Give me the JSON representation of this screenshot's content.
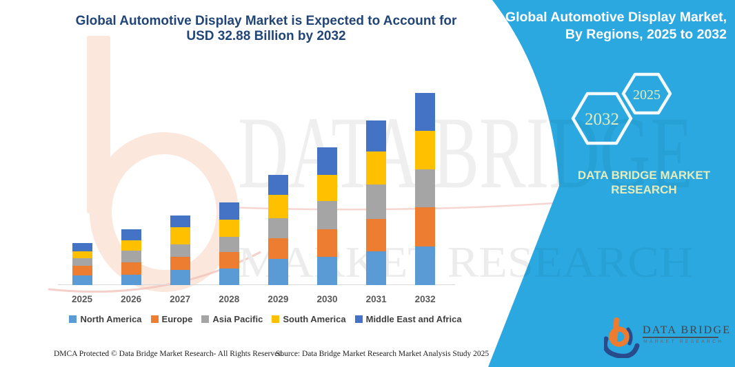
{
  "title": {
    "line1": "Global Automotive Display Market is Expected to Account for",
    "line2": "USD 32.88 Billion by 2032"
  },
  "banner": {
    "title_line1": "Global Automotive Display Market,",
    "title_line2": "By Regions, 2025 to 2032",
    "brand_name": "DATA BRIDGE MARKET RESEARCH",
    "hexagons": {
      "back": "2032",
      "front": "2025"
    }
  },
  "logo": {
    "wordmark": "DATA BRIDGE",
    "subtext": "MARKET RESEARCH"
  },
  "watermark": {
    "line1": "DATA BRIDGE",
    "line2": "MARKET RESEARCH"
  },
  "footer": {
    "dmca": "DMCA Protected © Data Bridge Market Research- All Rights Reserved.",
    "source": "Source: Data Bridge Market Research Market Analysis Study 2025"
  },
  "colors": {
    "teal": "#2AA8DF",
    "title_navy": "#214577",
    "pale_yellow": "#E5ECBD",
    "axis_label": "#595959",
    "legend_text": "#3F3F3F"
  },
  "chart_data": {
    "type": "bar",
    "stacked": true,
    "title": "Global Automotive Display Market is Expected to Account for USD 32.88 Billion by 2032",
    "unit": "USD Billion",
    "categories": [
      "2025",
      "2026",
      "2027",
      "2028",
      "2029",
      "2030",
      "2031",
      "2032"
    ],
    "series": [
      {
        "name": "North America",
        "color": "#5B9BD5",
        "values": [
          1.6,
          1.8,
          2.6,
          2.8,
          4.5,
          4.8,
          5.8,
          6.6
        ]
      },
      {
        "name": "Europe",
        "color": "#ED7D31",
        "values": [
          1.7,
          2.1,
          2.2,
          2.8,
          3.5,
          4.8,
          5.5,
          6.7
        ]
      },
      {
        "name": "Asia Pacific",
        "color": "#A5A5A5",
        "values": [
          1.3,
          2.0,
          2.2,
          2.7,
          3.4,
          4.8,
          5.9,
          6.5
        ]
      },
      {
        "name": "South America",
        "color": "#FFC000",
        "values": [
          1.2,
          1.8,
          2.9,
          2.9,
          4.0,
          4.5,
          5.7,
          6.6
        ]
      },
      {
        "name": "Middle East and Africa",
        "color": "#4472C4",
        "values": [
          1.4,
          1.8,
          2.0,
          2.9,
          3.4,
          4.7,
          5.3,
          6.48
        ]
      }
    ],
    "totals": [
      7.2,
      9.5,
      11.9,
      14.1,
      18.8,
      23.6,
      28.2,
      32.88
    ],
    "ylim": [
      0,
      33
    ],
    "legend_position": "bottom",
    "gridlines": false,
    "y_axis_visible": false
  }
}
